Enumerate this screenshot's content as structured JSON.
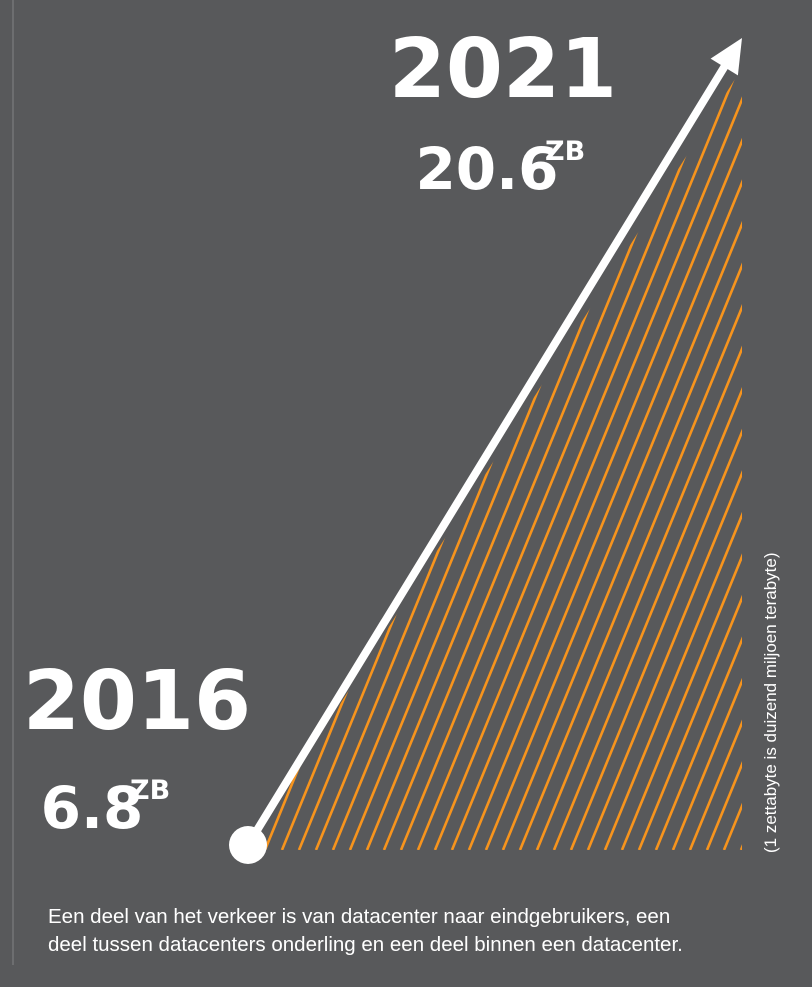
{
  "chart_data": {
    "type": "area",
    "x": [
      "2016",
      "2021"
    ],
    "series": [
      {
        "values": [
          6.8,
          20.6
        ]
      }
    ],
    "unit": "ZB",
    "labels": [
      {
        "year": "2016",
        "value": "6.8",
        "unit": "ZB"
      },
      {
        "year": "2021",
        "value": "20.6",
        "unit": "ZB"
      }
    ],
    "fill_pattern": "diagonal-hatch"
  },
  "note": "(1 zettabyte is duizend miljoen terabyte)",
  "caption": [
    "Een deel van het verkeer is van datacenter naar eindgebruikers, een",
    "deel tussen datacenters onderling en een deel binnen een datacenter."
  ],
  "colors": {
    "background": "#58595b",
    "hatch": "#f7941d",
    "arrow": "#ffffff",
    "text": "#ffffff"
  }
}
